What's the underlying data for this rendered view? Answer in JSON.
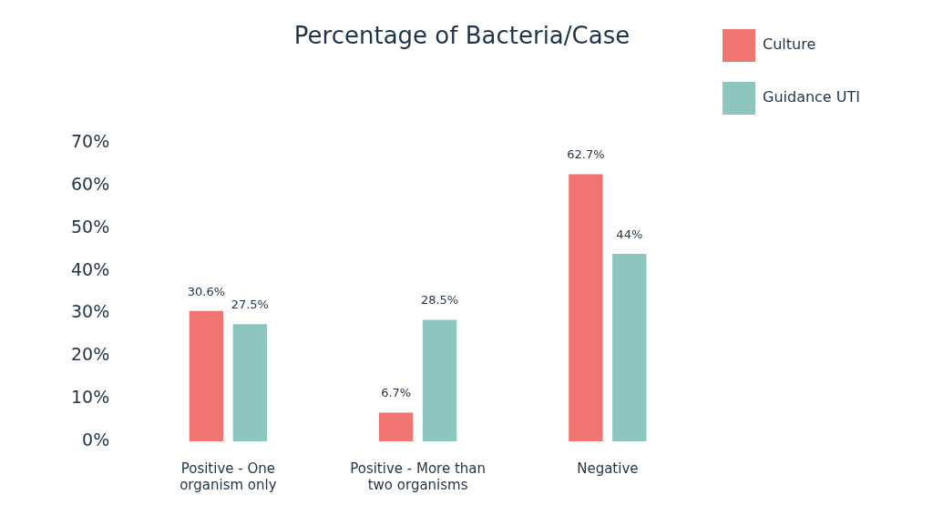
{
  "chart_data": {
    "type": "bar",
    "title": "Percentage of Bacteria/Case",
    "categories": [
      "Positive - One organism only",
      "Positive - More than two organisms",
      "Negative"
    ],
    "series": [
      {
        "name": "Culture",
        "color": "#f07470",
        "values": [
          30.6,
          6.7,
          62.7
        ],
        "value_labels": [
          "30.6%",
          "6.7%",
          "62.7%"
        ]
      },
      {
        "name": "Guidance UTI",
        "color": "#8ec5bf",
        "values": [
          27.5,
          28.5,
          44
        ],
        "value_labels": [
          "27.5%",
          "28.5%",
          "44%"
        ]
      }
    ],
    "ylim": [
      0,
      70
    ],
    "yticks": [
      {
        "value": 0,
        "label": "0%"
      },
      {
        "value": 10,
        "label": "10%"
      },
      {
        "value": 20,
        "label": "20%"
      },
      {
        "value": 30,
        "label": "30%"
      },
      {
        "value": 40,
        "label": "40%"
      },
      {
        "value": 50,
        "label": "50%"
      },
      {
        "value": 60,
        "label": "60%"
      },
      {
        "value": 70,
        "label": "70%"
      }
    ],
    "grid": false,
    "legend": "upper right",
    "data_labels": true
  }
}
